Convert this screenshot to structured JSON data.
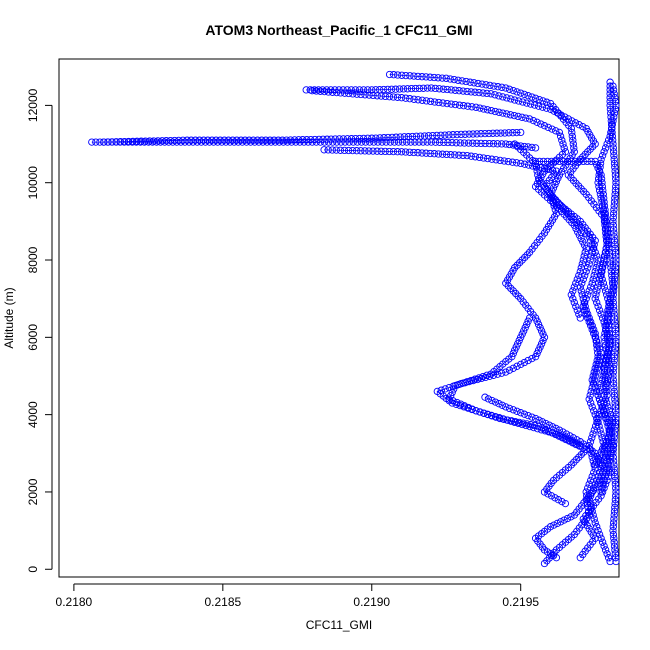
{
  "chart_data": {
    "type": "scatter",
    "title": "ATOM3 Northeast_Pacific_1 CFC11_GMI",
    "xlabel": "CFC11_GMI",
    "ylabel": "Altitude (m)",
    "xlim": [
      0.21795,
      0.21983
    ],
    "ylim": [
      -200,
      13200
    ],
    "xticks": [
      "0.2180",
      "0.2185",
      "0.2190",
      "0.2195"
    ],
    "xtick_values": [
      0.218,
      0.2185,
      0.219,
      0.2195
    ],
    "yticks": [
      "0",
      "2000",
      "4000",
      "6000",
      "8000",
      "10000",
      "12000"
    ],
    "ytick_values": [
      0,
      2000,
      4000,
      6000,
      8000,
      10000,
      12000
    ],
    "grid": false,
    "marker": "open-circle",
    "color": "#0000ff",
    "series": [
      {
        "points": [
          [
            0.21958,
            150
          ],
          [
            0.21962,
            500
          ],
          [
            0.21968,
            900
          ],
          [
            0.21973,
            1400
          ],
          [
            0.21972,
            2000
          ],
          [
            0.21975,
            2600
          ],
          [
            0.21973,
            3200
          ],
          [
            0.21976,
            3900
          ],
          [
            0.21979,
            4500
          ],
          [
            0.21978,
            5200
          ],
          [
            0.2198,
            5900
          ],
          [
            0.21979,
            6600
          ],
          [
            0.21981,
            7300
          ],
          [
            0.2198,
            8000
          ],
          [
            0.21979,
            8800
          ],
          [
            0.21978,
            9500
          ],
          [
            0.21977,
            10200
          ],
          [
            0.21975,
            10550
          ],
          [
            0.21955,
            10550
          ]
        ]
      },
      {
        "points": [
          [
            0.2197,
            300
          ],
          [
            0.21975,
            800
          ],
          [
            0.21971,
            1300
          ],
          [
            0.21977,
            1900
          ],
          [
            0.2198,
            2500
          ],
          [
            0.21978,
            3100
          ],
          [
            0.21981,
            3800
          ],
          [
            0.21978,
            4500
          ],
          [
            0.2198,
            5200
          ],
          [
            0.21978,
            6000
          ],
          [
            0.2198,
            6800
          ],
          [
            0.21977,
            7600
          ],
          [
            0.21979,
            8400
          ],
          [
            0.21978,
            9200
          ],
          [
            0.21976,
            10000
          ],
          [
            0.21977,
            10600
          ],
          [
            0.2198,
            11200
          ],
          [
            0.21982,
            12000
          ],
          [
            0.21981,
            12500
          ]
        ]
      },
      {
        "points": [
          [
            0.21982,
            200
          ],
          [
            0.21981,
            1000
          ],
          [
            0.21982,
            2000
          ],
          [
            0.21981,
            3000
          ],
          [
            0.21982,
            4000
          ],
          [
            0.21981,
            5000
          ],
          [
            0.21982,
            6000
          ],
          [
            0.21981,
            7000
          ],
          [
            0.21982,
            8000
          ],
          [
            0.21981,
            9000
          ],
          [
            0.21982,
            10000
          ],
          [
            0.21981,
            11000
          ],
          [
            0.2198,
            12000
          ],
          [
            0.2198,
            12600
          ]
        ]
      },
      {
        "points": [
          [
            0.21965,
            1700
          ],
          [
            0.21958,
            2000
          ],
          [
            0.21961,
            2300
          ],
          [
            0.21967,
            2700
          ],
          [
            0.21972,
            3100
          ],
          [
            0.21964,
            3400
          ],
          [
            0.21956,
            3700
          ],
          [
            0.21943,
            3900
          ],
          [
            0.21927,
            4300
          ],
          [
            0.21922,
            4600
          ],
          [
            0.2193,
            4800
          ],
          [
            0.21945,
            5100
          ],
          [
            0.21955,
            5500
          ],
          [
            0.21958,
            6000
          ],
          [
            0.21955,
            6500
          ],
          [
            0.2195,
            7000
          ],
          [
            0.21945,
            7400
          ],
          [
            0.21948,
            7800
          ],
          [
            0.21953,
            8200
          ],
          [
            0.21958,
            8700
          ],
          [
            0.21962,
            9200
          ],
          [
            0.2196,
            9700
          ],
          [
            0.21956,
            10100
          ],
          [
            0.21955,
            10500
          ],
          [
            0.21948,
            11000
          ]
        ]
      },
      {
        "points": [
          [
            0.2195,
            11300
          ],
          [
            0.2193,
            11250
          ],
          [
            0.219,
            11150
          ],
          [
            0.2187,
            11100
          ],
          [
            0.21838,
            11100
          ],
          [
            0.2181,
            11050
          ]
        ]
      },
      {
        "points": [
          [
            0.21806,
            11050
          ],
          [
            0.2184,
            11050
          ],
          [
            0.2188,
            11050
          ],
          [
            0.2192,
            11050
          ],
          [
            0.21945,
            11000
          ],
          [
            0.21955,
            10900
          ]
        ]
      },
      {
        "points": [
          [
            0.21938,
            4450
          ],
          [
            0.21945,
            4200
          ],
          [
            0.21955,
            3900
          ],
          [
            0.21963,
            3600
          ],
          [
            0.2197,
            3300
          ],
          [
            0.21975,
            3000
          ],
          [
            0.21978,
            2600
          ],
          [
            0.21976,
            2200
          ],
          [
            0.21972,
            1800
          ],
          [
            0.21968,
            1400
          ],
          [
            0.2196,
            1100
          ],
          [
            0.21955,
            800
          ],
          [
            0.21958,
            500
          ],
          [
            0.21962,
            300
          ]
        ]
      },
      {
        "points": [
          [
            0.21878,
            12400
          ],
          [
            0.219,
            12400
          ],
          [
            0.2192,
            12450
          ],
          [
            0.2194,
            12300
          ],
          [
            0.2196,
            11900
          ],
          [
            0.21972,
            11400
          ],
          [
            0.21975,
            11000
          ],
          [
            0.2197,
            10600
          ],
          [
            0.21966,
            10200
          ],
          [
            0.21972,
            9700
          ],
          [
            0.21978,
            9100
          ],
          [
            0.21979,
            8400
          ],
          [
            0.21977,
            7700
          ],
          [
            0.21975,
            7000
          ],
          [
            0.21978,
            6400
          ],
          [
            0.2198,
            5800
          ],
          [
            0.21978,
            5100
          ],
          [
            0.21976,
            4500
          ],
          [
            0.21979,
            3800
          ],
          [
            0.21981,
            3200
          ],
          [
            0.21979,
            2600
          ],
          [
            0.21977,
            2000
          ]
        ]
      },
      {
        "points": [
          [
            0.21906,
            12800
          ],
          [
            0.21925,
            12700
          ],
          [
            0.21945,
            12450
          ],
          [
            0.2196,
            12050
          ],
          [
            0.21967,
            11400
          ],
          [
            0.21968,
            10800
          ],
          [
            0.21963,
            10200
          ],
          [
            0.2196,
            9700
          ],
          [
            0.21966,
            9200
          ],
          [
            0.21973,
            8600
          ],
          [
            0.21976,
            8000
          ],
          [
            0.21974,
            7400
          ],
          [
            0.21971,
            6800
          ],
          [
            0.21974,
            6200
          ],
          [
            0.21977,
            5600
          ],
          [
            0.21975,
            5000
          ],
          [
            0.21973,
            4400
          ],
          [
            0.21976,
            3800
          ],
          [
            0.21978,
            3200
          ],
          [
            0.21975,
            2700
          ]
        ]
      },
      {
        "points": [
          [
            0.21884,
            10850
          ],
          [
            0.2191,
            10800
          ],
          [
            0.21932,
            10700
          ],
          [
            0.2195,
            10500
          ],
          [
            0.21962,
            10300
          ],
          [
            0.21958,
            9900
          ],
          [
            0.21962,
            9500
          ],
          [
            0.2197,
            9000
          ],
          [
            0.21975,
            8500
          ],
          [
            0.21973,
            7900
          ],
          [
            0.2197,
            7300
          ],
          [
            0.21972,
            6700
          ],
          [
            0.21975,
            6100
          ],
          [
            0.21976,
            5500
          ],
          [
            0.21974,
            4900
          ],
          [
            0.21977,
            4300
          ],
          [
            0.2198,
            3700
          ],
          [
            0.21979,
            3000
          ],
          [
            0.21976,
            2400
          ],
          [
            0.21973,
            1800
          ],
          [
            0.21975,
            1200
          ],
          [
            0.21978,
            600
          ],
          [
            0.2198,
            200
          ]
        ]
      },
      {
        "points": [
          [
            0.2188,
            12380
          ],
          [
            0.2191,
            12200
          ],
          [
            0.21935,
            11950
          ],
          [
            0.21953,
            11650
          ],
          [
            0.21963,
            11300
          ],
          [
            0.21965,
            10800
          ],
          [
            0.21958,
            10300
          ],
          [
            0.21955,
            9900
          ],
          [
            0.21962,
            9400
          ],
          [
            0.21968,
            8900
          ],
          [
            0.21972,
            8300
          ],
          [
            0.2197,
            7700
          ],
          [
            0.21967,
            7100
          ],
          [
            0.2197,
            6500
          ]
        ]
      },
      {
        "points": [
          [
            0.21953,
            6500
          ],
          [
            0.2195,
            6000
          ],
          [
            0.21947,
            5500
          ],
          [
            0.2194,
            5050
          ],
          [
            0.21928,
            4750
          ],
          [
            0.21926,
            4400
          ],
          [
            0.21935,
            4100
          ],
          [
            0.21948,
            3800
          ],
          [
            0.21962,
            3500
          ],
          [
            0.2197,
            3200
          ]
        ]
      }
    ]
  }
}
